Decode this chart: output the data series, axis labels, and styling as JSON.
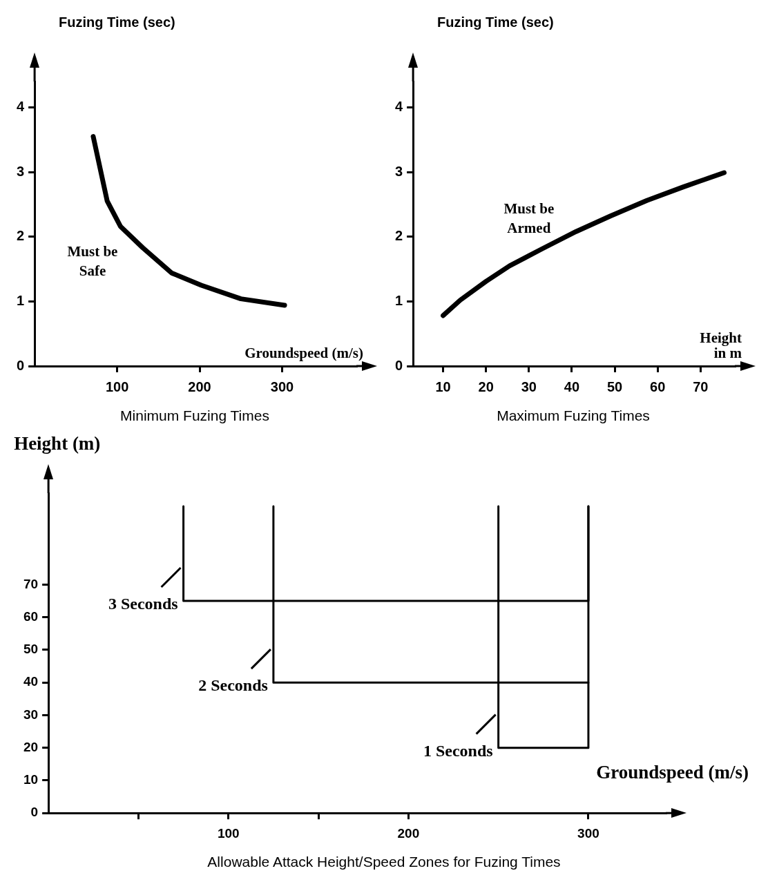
{
  "chart_data": [
    {
      "type": "line",
      "ylabel": "Fuzing Time (sec)",
      "xlabel": "Groundspeed (m/s)",
      "xlim": [
        0,
        390
      ],
      "xticks": [
        100,
        200,
        300
      ],
      "ylim": [
        0,
        4.4
      ],
      "yticks": [
        0,
        1,
        2,
        3,
        4
      ],
      "grid": false,
      "legend": false,
      "marker": "none",
      "line_style": "solid",
      "annotations": [
        "Must be Safe",
        "Minimum Fuzing Times"
      ],
      "series": [
        {
          "color": "#000000",
          "x": [
            71,
            88,
            104,
            131,
            166,
            202,
            250,
            303
          ],
          "values": [
            3.55,
            2.55,
            2.16,
            1.83,
            1.44,
            1.25,
            1.04,
            0.94
          ]
        }
      ]
    },
    {
      "type": "line",
      "ylabel": "Fuzing Time (sec)",
      "xlabel": "Height in m",
      "xlim": [
        3,
        78
      ],
      "xticks": [
        10,
        20,
        30,
        40,
        50,
        60,
        70
      ],
      "ylim": [
        0,
        4.4
      ],
      "yticks": [
        0,
        1,
        2,
        3,
        4
      ],
      "grid": false,
      "legend": false,
      "marker": "none",
      "line_style": "solid",
      "annotations": [
        "Must be Armed",
        "Maximum Fuzing Times"
      ],
      "series": [
        {
          "color": "#000000",
          "x": [
            10,
            14,
            20,
            25.5,
            33,
            41,
            49,
            57.5,
            66,
            75.5
          ],
          "values": [
            0.78,
            1.02,
            1.31,
            1.55,
            1.81,
            2.08,
            2.32,
            2.56,
            2.77,
            2.99
          ]
        }
      ]
    },
    {
      "type": "line",
      "ylabel": "Height (m)",
      "xlabel": "Groundspeed (m/s)",
      "xlim": [
        0,
        343
      ],
      "xticks": [
        {
          "value": 50,
          "label": null
        },
        100,
        {
          "value": 150,
          "label": null
        },
        200,
        300
      ],
      "ylim": [
        0,
        98
      ],
      "yticks": [
        0,
        10,
        20,
        30,
        40,
        50,
        60,
        70
      ],
      "grid": false,
      "legend": false,
      "marker": "none",
      "line_style": "solid",
      "annotations": [
        {
          "text": "3 Seconds",
          "x": 75,
          "y": 65
        },
        {
          "text": "2 Seconds",
          "x": 125,
          "y": 40
        },
        {
          "text": "1 Seconds",
          "x": 250,
          "y": 20
        },
        "Allowable Attack Height/Speed Zones for Fuzing Times"
      ],
      "series": [
        {
          "color": "#000000",
          "x": [
            75,
            75,
            300,
            300
          ],
          "values": [
            94,
            65,
            65,
            94
          ]
        },
        {
          "color": "#000000",
          "x": [
            125,
            125,
            300
          ],
          "values": [
            94,
            40,
            40
          ]
        },
        {
          "color": "#000000",
          "x": [
            250,
            250,
            300,
            300
          ],
          "values": [
            94,
            20,
            20,
            94
          ]
        }
      ]
    }
  ]
}
